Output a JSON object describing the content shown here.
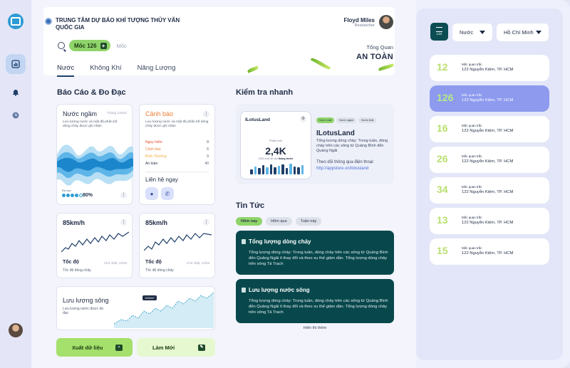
{
  "header": {
    "org_name": "TRUNG TÂM DỰ BÁO KHÍ TƯỢNG THỦY VĂN QUỐC GIA",
    "user_name": "Floyd Miles",
    "user_role": "Researcher",
    "moc_chip": "Mốc 126",
    "moc_placeholder": "Mốc",
    "overview_label": "Tổng Quan",
    "overview_value": "AN TOÀN",
    "tabs": [
      {
        "label": "Nước",
        "active": true
      },
      {
        "label": "Không Khí"
      },
      {
        "label": "Năng Lượng"
      }
    ]
  },
  "reports": {
    "title": "Báo Cáo & Đo Đạc",
    "groundwater": {
      "title": "Nước ngầm",
      "date": "Tháng 1/2022",
      "desc": "Lưu lượng nước và mật độ phân bố dòng chảy được ghi nhận",
      "level_label": "Độ cao",
      "level_percent": "80%",
      "level_fraction": 0.8
    },
    "warning": {
      "title": "Cảnh báo",
      "desc": "Lưu lượng nước và mật độ phân bố dòng chảy được ghi nhận",
      "levels": [
        {
          "label": "Nguy hiểm",
          "count": "8",
          "color": "#e2542f"
        },
        {
          "label": "Cảnh báo",
          "count": "6",
          "color": "#ee7f38"
        },
        {
          "label": "Bình Thường",
          "count": "9",
          "color": "#f0ad3c"
        },
        {
          "label": "An toàn",
          "count": "40",
          "color": "#1f2b44"
        }
      ],
      "contact": "Liên hệ ngay"
    },
    "speed_cards": [
      {
        "value": "85km/h",
        "label": "Tốc độ",
        "sub": "Tốc độ dòng chảy",
        "date": "Chủ nhật, 12/03"
      },
      {
        "value": "85km/h",
        "label": "Tốc độ",
        "sub": "Tốc độ dòng chảy",
        "date": "Chủ nhật, 12/03"
      }
    ],
    "river_flow": {
      "title": "Lưu lượng sông",
      "sub": "Lưu lượng nước được đo đạc",
      "badge": "1000m³"
    },
    "export_button": "Xuất dữ liệu",
    "new_button": "Làm Mới"
  },
  "quick_check": {
    "title": "Kiểm tra nhanh",
    "phone": {
      "brand": "ILotusLand",
      "label": "Phiên tính",
      "value": "2,4K",
      "sub_prefix": "2030 lượt tải vào",
      "sub_bold": "tháng trước",
      "bars": [
        0.45,
        0.7,
        0.55,
        0.8,
        0.65,
        0.9,
        0.6,
        0.75,
        0.85,
        0.55,
        0.95,
        0.7,
        0.6,
        0.8
      ]
    },
    "chips": [
      {
        "label": "Nước mặt",
        "active": true
      },
      {
        "label": "Nước ngầm"
      },
      {
        "label": "Nước thải"
      }
    ],
    "app_name": "ILotusLand",
    "desc": "Tổng lượng dòng chảy: Trong tuần, dòng chảy trên các sông từ Quảng Bình đến Quảng Ngãi",
    "follow": "Theo dõi thông qua điện thoại:",
    "link": "http://appstore.vn/ilotusland"
  },
  "news": {
    "title": "Tin Tức",
    "chips": [
      {
        "label": "Hôm nay",
        "active": true
      },
      {
        "label": "Hôm qua"
      },
      {
        "label": "Tuần này"
      }
    ],
    "items": [
      {
        "title": "Tổng lượng dòng chảy",
        "body": "Tổng lượng dòng chảy: Trong tuần, dòng chảy trên các sông từ Quảng Bình đến Quảng Ngãi ít thay đổi và theo xu thế giảm dần. Tổng lượng dòng chảy trên sông Tả Trạch"
      },
      {
        "title": "Lưu lượng nước sông",
        "body": "Tổng lượng dòng chảy: Trong tuần, dòng chảy trên các sông từ Quảng Bình đến Quảng Ngãi ít thay đổi và theo xu thế giảm dần. Tổng lượng dòng chảy trên sông Tả Trạch"
      }
    ],
    "more": "Hiển thị thêm"
  },
  "sidebar": {
    "list_label": "List",
    "type_select": "Nước",
    "city_select": "Hồ Chí Minh",
    "stations": [
      {
        "num": "12",
        "label": "Mốc quan trắc",
        "addr": "122 Nguyễn Kiệm, TP. HCM"
      },
      {
        "num": "126",
        "label": "Mốc quan trắc",
        "addr": "122 Nguyễn Kiệm, TP. HCM",
        "active": true
      },
      {
        "num": "16",
        "label": "Mốc quan trắc",
        "addr": "122 Nguyễn Kiệm, TP. HCM"
      },
      {
        "num": "26",
        "label": "Mốc quan trắc",
        "addr": "122 Nguyễn Kiệm, TP. HCM"
      },
      {
        "num": "34",
        "label": "Mốc quan trắc",
        "addr": "122 Nguyễn Kiệm, TP. HCM"
      },
      {
        "num": "13",
        "label": "Mốc quan trắc",
        "addr": "122 Nguyễn Kiệm, TP. HCM"
      },
      {
        "num": "15",
        "label": "Mốc quan trắc",
        "addr": "122 Nguyễn Kiệm, TP. HCM"
      }
    ]
  },
  "colors": {
    "accent_green": "#8fd46a",
    "dark_teal": "#08484c",
    "active_station": "#8d9aee",
    "wave_blue": "#2d9bd4"
  }
}
